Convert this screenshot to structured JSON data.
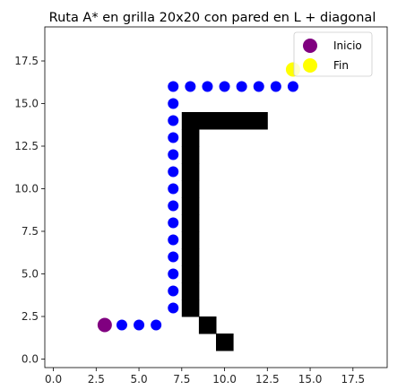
{
  "chart_data": {
    "type": "grid-path",
    "title": "Ruta A* en grilla 20x20 con pared en L + diagonal",
    "grid_size": [
      20,
      20
    ],
    "xlim": [
      -0.5,
      19.5
    ],
    "ylim": [
      19.5,
      -0.5
    ],
    "y_inverted": true,
    "xticks": [
      0,
      2.5,
      5,
      7.5,
      10,
      12.5,
      15,
      17.5
    ],
    "xtick_labels": [
      "0.0",
      "2.5",
      "5.0",
      "7.5",
      "10.0",
      "12.5",
      "15.0",
      "17.5"
    ],
    "yticks": [
      0,
      2.5,
      5,
      7.5,
      10,
      12.5,
      15,
      17.5
    ],
    "ytick_labels": [
      "0.0",
      "2.5",
      "5.0",
      "7.5",
      "10.0",
      "12.5",
      "15.0",
      "17.5"
    ],
    "grid": false,
    "legend_position": "top-right",
    "wall_color": "#000000",
    "path_color": "#0000ff",
    "walls": [
      [
        10,
        2
      ],
      [
        9,
        3
      ],
      [
        8,
        4
      ],
      [
        8,
        5
      ],
      [
        8,
        6
      ],
      [
        8,
        7
      ],
      [
        8,
        8
      ],
      [
        8,
        9
      ],
      [
        8,
        10
      ],
      [
        8,
        11
      ],
      [
        8,
        12
      ],
      [
        8,
        13
      ],
      [
        8,
        14
      ],
      [
        8,
        15
      ],
      [
        9,
        15
      ],
      [
        10,
        15
      ],
      [
        11,
        15
      ],
      [
        12,
        15
      ]
    ],
    "path": [
      [
        4,
        2
      ],
      [
        5,
        2
      ],
      [
        6,
        2
      ],
      [
        7,
        3
      ],
      [
        7,
        4
      ],
      [
        7,
        5
      ],
      [
        7,
        6
      ],
      [
        7,
        7
      ],
      [
        7,
        8
      ],
      [
        7,
        9
      ],
      [
        7,
        10
      ],
      [
        7,
        11
      ],
      [
        7,
        12
      ],
      [
        7,
        13
      ],
      [
        7,
        14
      ],
      [
        7,
        15
      ],
      [
        7,
        16
      ],
      [
        8,
        16
      ],
      [
        9,
        16
      ],
      [
        10,
        16
      ],
      [
        11,
        16
      ],
      [
        12,
        16
      ],
      [
        13,
        16
      ],
      [
        14,
        16
      ]
    ],
    "start": {
      "x": 3,
      "y": 2,
      "color": "#800080"
    },
    "end": {
      "x": 14,
      "y": 17,
      "color": "#ffff00"
    },
    "legend": [
      {
        "label": "Inicio",
        "color": "#800080"
      },
      {
        "label": "Fin",
        "color": "#ffff00"
      }
    ]
  }
}
